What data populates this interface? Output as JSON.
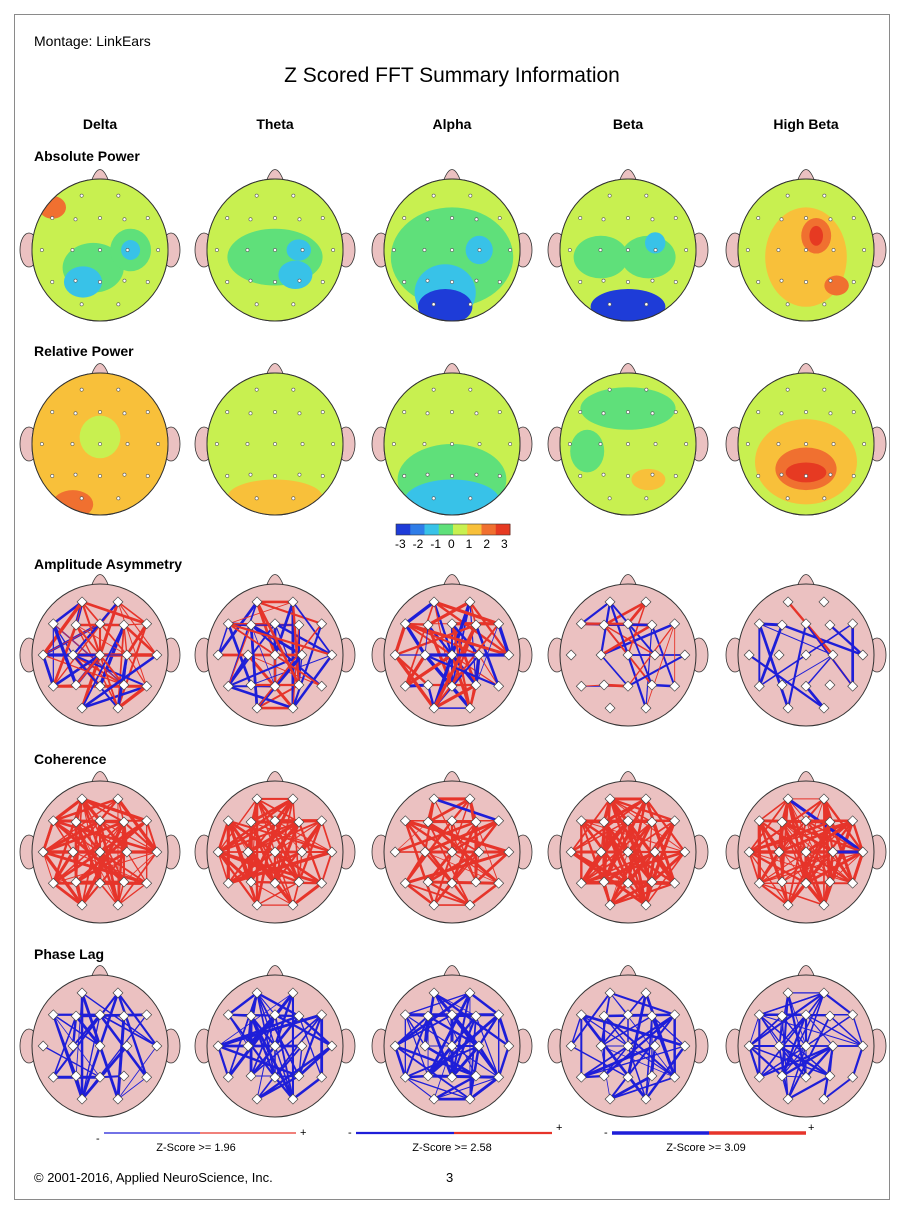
{
  "header": {
    "montage": "Montage:  LinkEars",
    "title": "Z Scored FFT Summary Information"
  },
  "bands": [
    "Delta",
    "Theta",
    "Alpha",
    "Beta",
    "High Beta"
  ],
  "sections": {
    "absolute_power": "Absolute Power",
    "relative_power": "Relative Power",
    "amplitude_asymmetry": "Amplitude Asymmetry",
    "coherence": "Coherence",
    "phase_lag": "Phase Lag"
  },
  "colorbar": {
    "ticks": [
      "-3",
      "-2",
      "-1",
      "0",
      "1",
      "2",
      "3"
    ],
    "colors": [
      "#1e3cd8",
      "#2f7de8",
      "#38c2e8",
      "#5fe07a",
      "#c8f050",
      "#f8c03a",
      "#f07030",
      "#e63a22"
    ]
  },
  "legend": {
    "minus": "-",
    "plus": "+",
    "thresholds": [
      "Z-Score >= 1.96",
      "Z-Score >= 2.58",
      "Z-Score >= 3.09"
    ]
  },
  "footer": {
    "copyright": "© 2001-2016, Applied NeuroScience, Inc.",
    "page_number": "3"
  },
  "colors": {
    "head_fill": "#ebc1c1",
    "positive": "#e6342a",
    "negative": "#1e1ed8",
    "base_green": "#6ee870"
  }
}
